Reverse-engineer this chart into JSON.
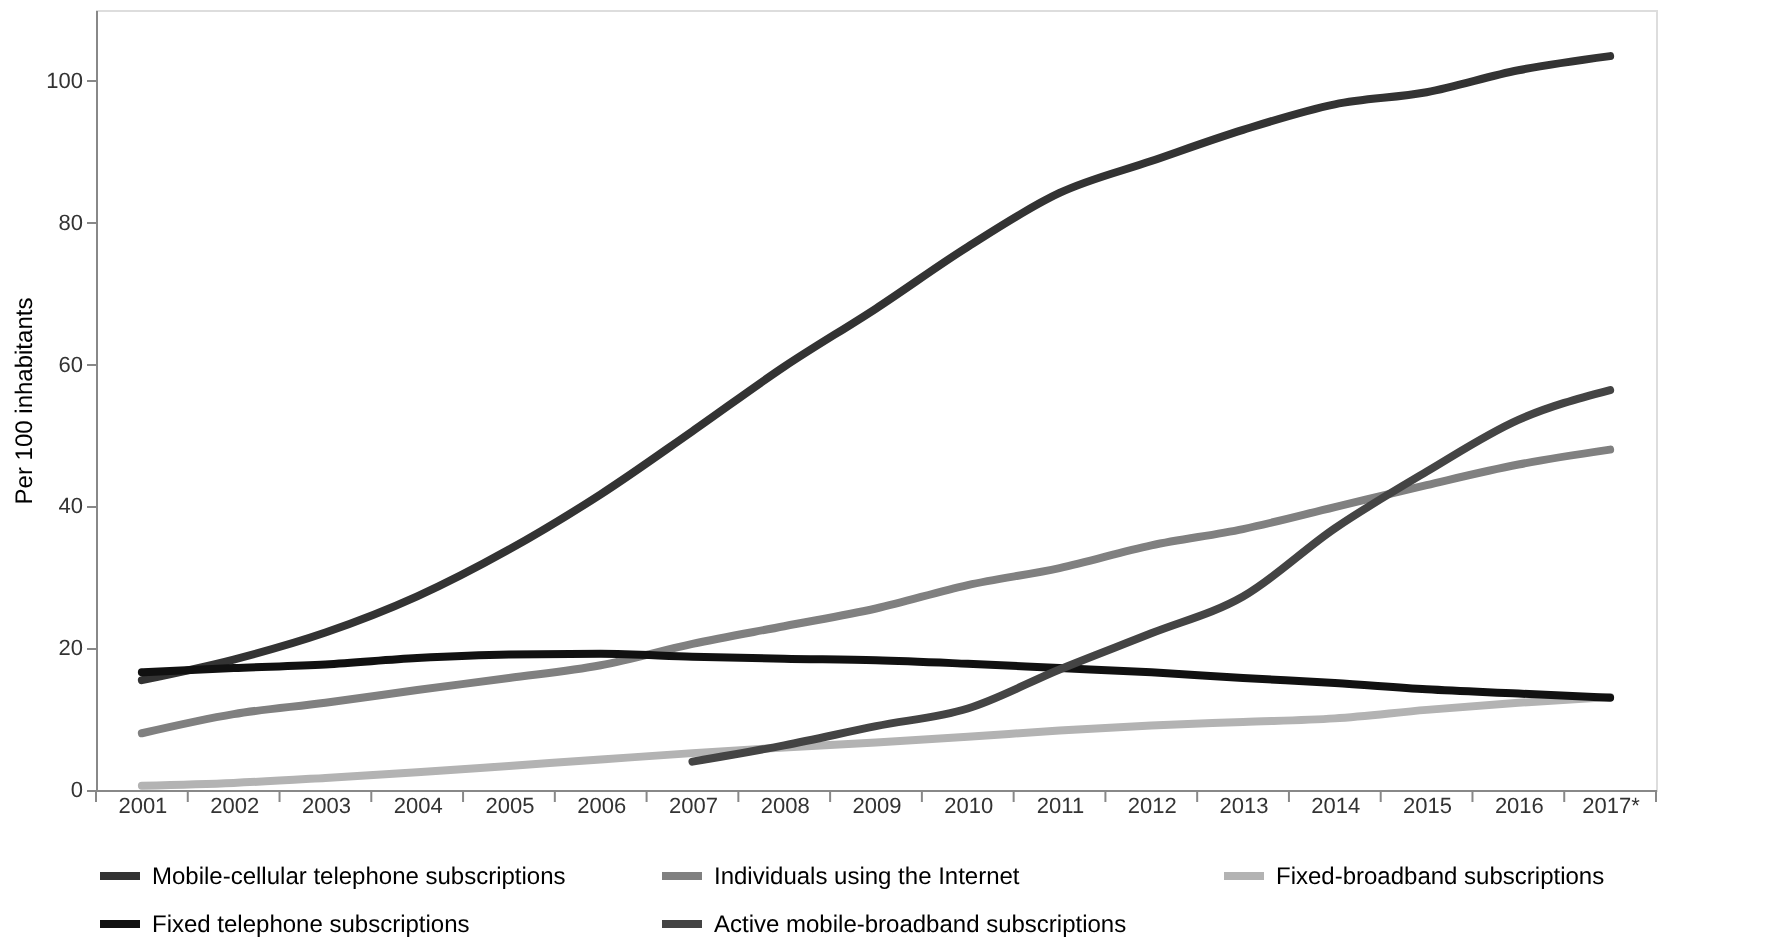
{
  "chart_data": {
    "type": "line",
    "ylabel": "Per 100 inhabitants",
    "categories": [
      "2001",
      "2002",
      "2003",
      "2004",
      "2005",
      "2006",
      "2007",
      "2008",
      "2009",
      "2010",
      "2011",
      "2012",
      "2013",
      "2014",
      "2015",
      "2016",
      "2017*"
    ],
    "series": [
      {
        "name": "Mobile-cellular telephone subscriptions",
        "color": "#333333",
        "values": [
          15.5,
          18.4,
          22.2,
          27.3,
          33.9,
          41.7,
          50.6,
          59.7,
          67.9,
          76.6,
          84.2,
          88.7,
          93.1,
          96.7,
          98.4,
          101.5,
          103.5
        ]
      },
      {
        "name": "Individuals using the Internet",
        "color": "#808080",
        "values": [
          8.0,
          10.7,
          12.3,
          14.1,
          15.8,
          17.6,
          20.6,
          23.1,
          25.6,
          28.9,
          31.3,
          34.5,
          36.8,
          39.9,
          43.0,
          45.9,
          48.0
        ]
      },
      {
        "name": "Fixed-broadband subscriptions",
        "color": "#b3b3b3",
        "values": [
          0.6,
          1.0,
          1.7,
          2.5,
          3.4,
          4.3,
          5.2,
          6.0,
          6.7,
          7.5,
          8.4,
          9.1,
          9.6,
          10.1,
          11.3,
          12.3,
          13.1
        ]
      },
      {
        "name": "Fixed telephone subscriptions",
        "color": "#111111",
        "values": [
          16.6,
          17.2,
          17.7,
          18.6,
          19.1,
          19.2,
          18.8,
          18.5,
          18.3,
          17.8,
          17.2,
          16.6,
          15.8,
          15.1,
          14.2,
          13.6,
          13.0
        ]
      },
      {
        "name": "Active mobile-broadband subscriptions",
        "color": "#444444",
        "values": [
          null,
          null,
          null,
          null,
          null,
          null,
          4.0,
          6.3,
          9.0,
          11.5,
          17.0,
          22.1,
          27.3,
          36.9,
          44.9,
          52.2,
          56.4
        ]
      }
    ],
    "ylim": [
      0,
      110
    ],
    "yticks": [
      0,
      20,
      40,
      60,
      80,
      100
    ],
    "grid": false,
    "legend": "bottom",
    "marker": "none",
    "line_style": "solid"
  }
}
